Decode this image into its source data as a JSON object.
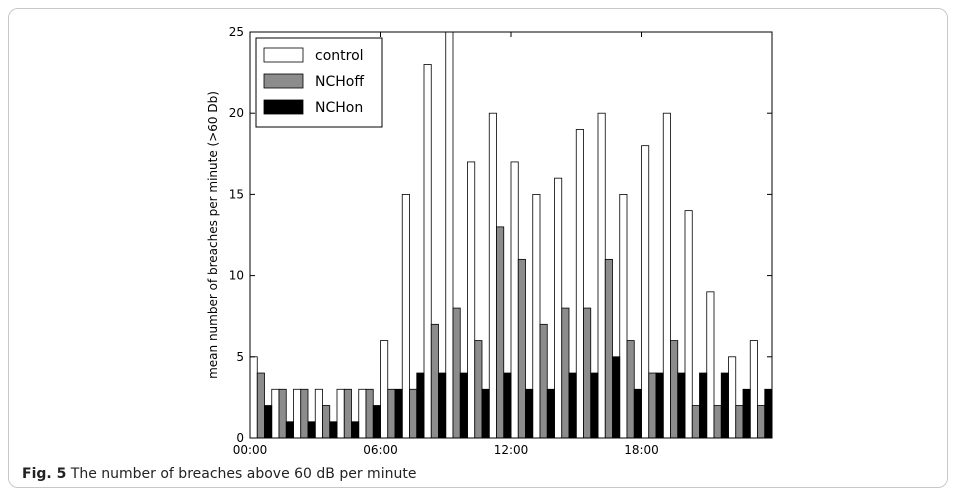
{
  "caption": {
    "label": "Fig. 5",
    "text": "The number of breaches above 60 dB per minute"
  },
  "chart_data": {
    "type": "bar",
    "ylabel": "mean number of breaches per minute (>60 Db)",
    "xlabel": "",
    "ylim": [
      0,
      25
    ],
    "yticks": [
      0,
      5,
      10,
      15,
      20,
      25
    ],
    "x_tick_labels": [
      {
        "hour": 0,
        "label": "00:00"
      },
      {
        "hour": 6,
        "label": "06:00"
      },
      {
        "hour": 12,
        "label": "12:00"
      },
      {
        "hour": 18,
        "label": "18:00"
      }
    ],
    "hours": [
      0,
      1,
      2,
      3,
      4,
      5,
      6,
      7,
      8,
      9,
      10,
      11,
      12,
      13,
      14,
      15,
      16,
      17,
      18,
      19,
      20,
      21,
      22,
      23
    ],
    "legend_position": "top-left",
    "series": [
      {
        "name": "control",
        "color": "#ffffff",
        "values": [
          5,
          3,
          3,
          3,
          3,
          3,
          6,
          15,
          23,
          25,
          17,
          20,
          17,
          15,
          16,
          19,
          20,
          15,
          18,
          20,
          14,
          9,
          5,
          6
        ]
      },
      {
        "name": "NCHoff",
        "color": "#8c8c8c",
        "values": [
          4,
          3,
          3,
          2,
          3,
          3,
          3,
          3,
          7,
          8,
          6,
          13,
          11,
          7,
          8,
          8,
          11,
          6,
          4,
          6,
          2,
          2,
          2,
          2
        ]
      },
      {
        "name": "NCHon",
        "color": "#000000",
        "values": [
          2,
          1,
          1,
          1,
          1,
          2,
          3,
          4,
          4,
          4,
          3,
          4,
          3,
          3,
          4,
          4,
          5,
          3,
          4,
          4,
          4,
          4,
          3,
          3
        ]
      }
    ]
  }
}
